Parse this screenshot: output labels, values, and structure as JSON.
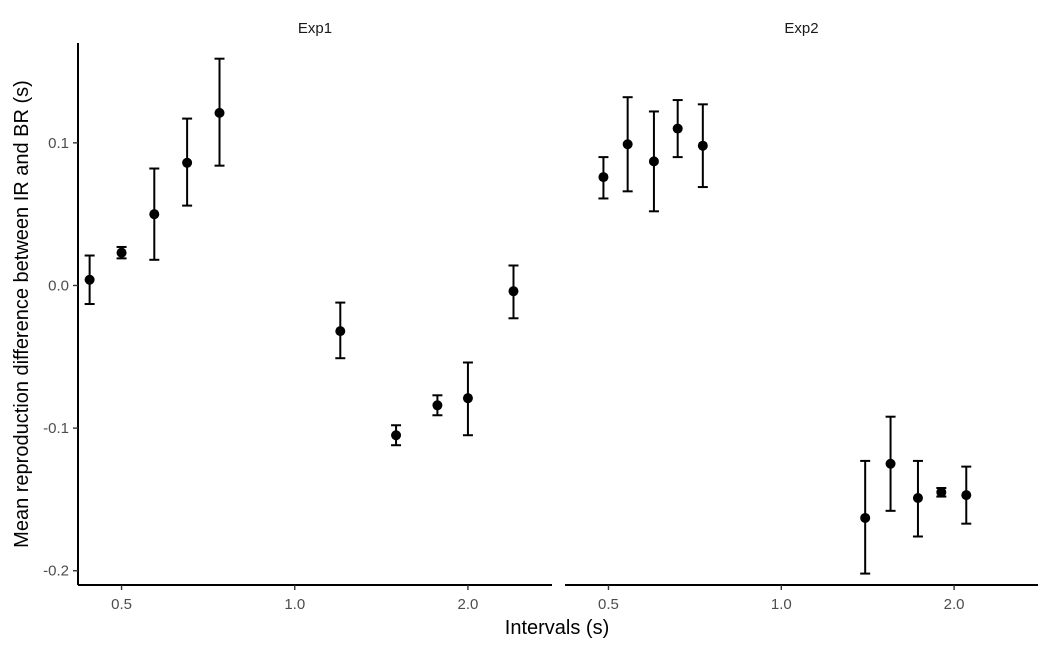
{
  "chart_data": {
    "type": "scatter",
    "xlabel": "Intervals (s)",
    "ylabel": "Mean reproduction difference between IR and BR (s)",
    "x_scale": "log",
    "xlim": [
      0.42,
      2.8
    ],
    "ylim": [
      -0.21,
      0.17
    ],
    "x_ticks": [
      {
        "value": 0.5,
        "label": "0.5"
      },
      {
        "value": 1.0,
        "label": "1.0"
      },
      {
        "value": 2.0,
        "label": "2.0"
      }
    ],
    "y_ticks": [
      {
        "value": 0.1,
        "label": "0.1"
      },
      {
        "value": 0.0,
        "label": "0.0"
      },
      {
        "value": -0.1,
        "label": "-0.1"
      },
      {
        "value": -0.2,
        "label": "-0.2"
      }
    ],
    "grid": false,
    "legend": "none",
    "marker_color": "#000000",
    "panels": [
      {
        "title": "Exp1",
        "points": [
          {
            "x": 0.44,
            "y": 0.004,
            "lo": -0.013,
            "hi": 0.021
          },
          {
            "x": 0.5,
            "y": 0.023,
            "lo": 0.019,
            "hi": 0.027
          },
          {
            "x": 0.57,
            "y": 0.05,
            "lo": 0.018,
            "hi": 0.082
          },
          {
            "x": 0.65,
            "y": 0.086,
            "lo": 0.056,
            "hi": 0.117
          },
          {
            "x": 0.74,
            "y": 0.121,
            "lo": 0.084,
            "hi": 0.159
          },
          {
            "x": 1.2,
            "y": -0.032,
            "lo": -0.051,
            "hi": -0.012
          },
          {
            "x": 1.5,
            "y": -0.105,
            "lo": -0.112,
            "hi": -0.098
          },
          {
            "x": 1.77,
            "y": -0.084,
            "lo": -0.091,
            "hi": -0.077
          },
          {
            "x": 2.0,
            "y": -0.079,
            "lo": -0.105,
            "hi": -0.054
          },
          {
            "x": 2.4,
            "y": -0.004,
            "lo": -0.023,
            "hi": 0.014
          }
        ]
      },
      {
        "title": "Exp2",
        "points": [
          {
            "x": 0.49,
            "y": 0.076,
            "lo": 0.061,
            "hi": 0.09
          },
          {
            "x": 0.54,
            "y": 0.099,
            "lo": 0.066,
            "hi": 0.132
          },
          {
            "x": 0.6,
            "y": 0.087,
            "lo": 0.052,
            "hi": 0.122
          },
          {
            "x": 0.66,
            "y": 0.11,
            "lo": 0.09,
            "hi": 0.13
          },
          {
            "x": 0.73,
            "y": 0.098,
            "lo": 0.069,
            "hi": 0.127
          },
          {
            "x": 1.4,
            "y": -0.163,
            "lo": -0.202,
            "hi": -0.123
          },
          {
            "x": 1.55,
            "y": -0.125,
            "lo": -0.158,
            "hi": -0.092
          },
          {
            "x": 1.73,
            "y": -0.149,
            "lo": -0.176,
            "hi": -0.123
          },
          {
            "x": 1.9,
            "y": -0.145,
            "lo": -0.148,
            "hi": -0.142
          },
          {
            "x": 2.1,
            "y": -0.147,
            "lo": -0.167,
            "hi": -0.127
          }
        ]
      }
    ]
  }
}
